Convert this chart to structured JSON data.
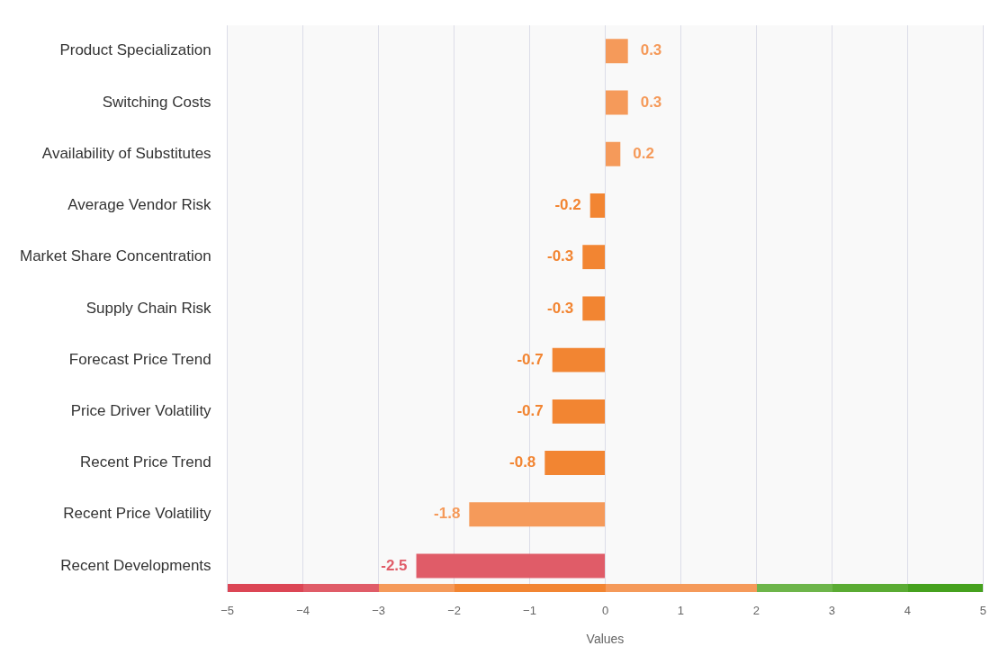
{
  "chart_data": {
    "type": "bar",
    "orientation": "horizontal",
    "xlabel": "Values",
    "categories": [
      "Product Specialization",
      "Switching Costs",
      "Availability of Substitutes",
      "Average Vendor Risk",
      "Market Share Concentration",
      "Supply Chain Risk",
      "Forecast Price Trend",
      "Price Driver Volatility",
      "Recent Price Trend",
      "Recent Price Volatility",
      "Recent Developments"
    ],
    "values": [
      0.3,
      0.3,
      0.2,
      -0.2,
      -0.3,
      -0.3,
      -0.7,
      -0.7,
      -0.8,
      -1.8,
      -2.5
    ],
    "colors": [
      "#f59a5a",
      "#f59a5a",
      "#f59a5a",
      "#f28532",
      "#f28532",
      "#f28532",
      "#f28532",
      "#f28532",
      "#f28532",
      "#f59a5a",
      "#e05c68"
    ],
    "xlim": [
      -5,
      5
    ],
    "xticks": [
      {
        "value": -5,
        "label": "−5"
      },
      {
        "value": -4,
        "label": "−4"
      },
      {
        "value": -3,
        "label": "−3"
      },
      {
        "value": -2,
        "label": "−2"
      },
      {
        "value": -1,
        "label": "−1"
      },
      0,
      1,
      2,
      3,
      4,
      5
    ],
    "grid": "x",
    "data_labels": true
  }
}
